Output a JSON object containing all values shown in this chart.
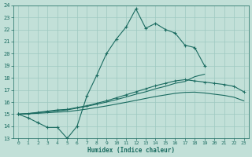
{
  "xlabel": "Humidex (Indice chaleur)",
  "bg_color": "#c2e0d8",
  "grid_color": "#9dc8c0",
  "line_color": "#1a6b60",
  "xlim": [
    -0.5,
    23.5
  ],
  "ylim": [
    13,
    24
  ],
  "xticks": [
    0,
    1,
    2,
    3,
    4,
    5,
    6,
    7,
    8,
    9,
    10,
    11,
    12,
    13,
    14,
    15,
    16,
    17,
    18,
    19,
    20,
    21,
    22,
    23
  ],
  "yticks": [
    13,
    14,
    15,
    16,
    17,
    18,
    19,
    20,
    21,
    22,
    23,
    24
  ],
  "line1_x": [
    0,
    1,
    2,
    3,
    4,
    5,
    6,
    7,
    8,
    9,
    10,
    11,
    12,
    13,
    14,
    15,
    16,
    17,
    18,
    19
  ],
  "line1_y": [
    15.0,
    14.7,
    14.3,
    13.9,
    13.9,
    13.0,
    14.0,
    16.5,
    18.2,
    20.0,
    21.2,
    22.2,
    23.7,
    22.1,
    22.5,
    22.0,
    21.7,
    20.7,
    20.5,
    19.0
  ],
  "line2_x": [
    0,
    1,
    2,
    3,
    4,
    5,
    6,
    7,
    8,
    9,
    10,
    11,
    12,
    13,
    14,
    15,
    16,
    17,
    18,
    19,
    20,
    21,
    22,
    23
  ],
  "line2_y": [
    15.0,
    15.05,
    15.15,
    15.25,
    15.35,
    15.4,
    15.55,
    15.7,
    15.9,
    16.1,
    16.35,
    16.6,
    16.85,
    17.1,
    17.35,
    17.55,
    17.75,
    17.85,
    17.75,
    17.65,
    17.55,
    17.45,
    17.3,
    16.85
  ],
  "line3_x": [
    0,
    1,
    2,
    3,
    4,
    5,
    6,
    7,
    8,
    9,
    10,
    11,
    12,
    13,
    14,
    15,
    16,
    17,
    18,
    19
  ],
  "line3_y": [
    15.0,
    15.05,
    15.12,
    15.2,
    15.28,
    15.35,
    15.5,
    15.65,
    15.82,
    16.0,
    16.2,
    16.42,
    16.65,
    16.85,
    17.1,
    17.3,
    17.55,
    17.7,
    18.1,
    18.3
  ],
  "line4_x": [
    0,
    1,
    2,
    3,
    4,
    5,
    6,
    7,
    8,
    9,
    10,
    11,
    12,
    13,
    14,
    15,
    16,
    17,
    18,
    19,
    20,
    21,
    22,
    23
  ],
  "line4_y": [
    15.0,
    15.03,
    15.07,
    15.12,
    15.17,
    15.21,
    15.31,
    15.42,
    15.55,
    15.68,
    15.83,
    15.98,
    16.14,
    16.3,
    16.46,
    16.59,
    16.72,
    16.8,
    16.82,
    16.75,
    16.65,
    16.55,
    16.4,
    16.1
  ]
}
